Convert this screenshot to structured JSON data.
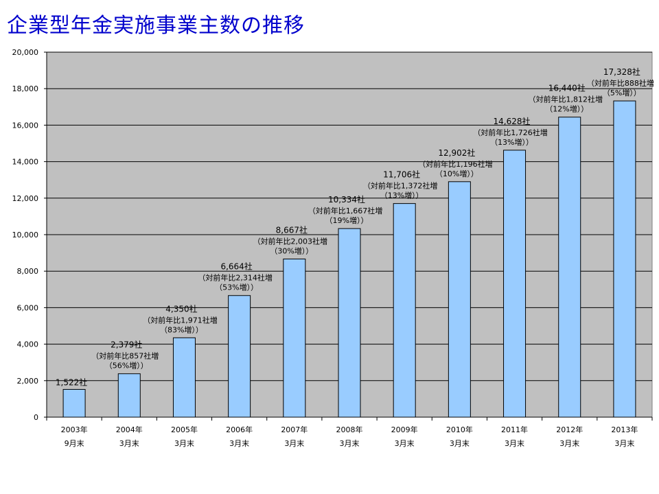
{
  "title": "企業型年金実施事業主数の推移",
  "chart_data": {
    "type": "bar",
    "title": "企業型年金実施事業主数の推移",
    "categories": [
      [
        "2003年",
        "9月末"
      ],
      [
        "2004年",
        "3月末"
      ],
      [
        "2005年",
        "3月末"
      ],
      [
        "2006年",
        "3月末"
      ],
      [
        "2007年",
        "3月末"
      ],
      [
        "2008年",
        "3月末"
      ],
      [
        "2009年",
        "3月末"
      ],
      [
        "2010年",
        "3月末"
      ],
      [
        "2011年",
        "3月末"
      ],
      [
        "2012年",
        "3月末"
      ],
      [
        "2013年",
        "3月末"
      ]
    ],
    "values": [
      1522,
      2379,
      4350,
      6664,
      8667,
      10334,
      11706,
      12902,
      14628,
      16440,
      17328
    ],
    "value_labels": [
      "1,522社",
      "2,379社",
      "4,350社",
      "6,664社",
      "8,667社",
      "10,334社",
      "11,706社",
      "12,902社",
      "14,628社",
      "16,440社",
      "17,328社"
    ],
    "change_labels": [
      null,
      [
        "（対前年比857社増",
        "（56%増））"
      ],
      [
        "（対前年比1,971社増",
        "（83%増））"
      ],
      [
        "（対前年比2,314社増",
        "（53%増））"
      ],
      [
        "（対前年比2,003社増",
        "（30%増））"
      ],
      [
        "（対前年比1,667社増",
        "（19%増））"
      ],
      [
        "（対前年比1,372社増",
        "（13%増））"
      ],
      [
        "（対前年比1,196社増",
        "（10%増））"
      ],
      [
        "（対前年比1,726社増",
        "（13%増））"
      ],
      [
        "（対前年比1,812社増",
        "（12%増））"
      ],
      [
        "（対前年比888社増",
        "（5%増））"
      ]
    ],
    "ylim": [
      0,
      20000
    ],
    "yticks": [
      0,
      2000,
      4000,
      6000,
      8000,
      10000,
      12000,
      14000,
      16000,
      18000,
      20000
    ],
    "ytick_labels": [
      "0",
      "2,000",
      "4,000",
      "6,000",
      "8,000",
      "10,000",
      "12,000",
      "14,000",
      "16,000",
      "18,000",
      "20,000"
    ],
    "grid": true,
    "colors": {
      "bar_fill": "#99ccff",
      "bar_stroke": "#000000",
      "plot_background": "#c0c0c0",
      "title": "#0000cc"
    }
  }
}
